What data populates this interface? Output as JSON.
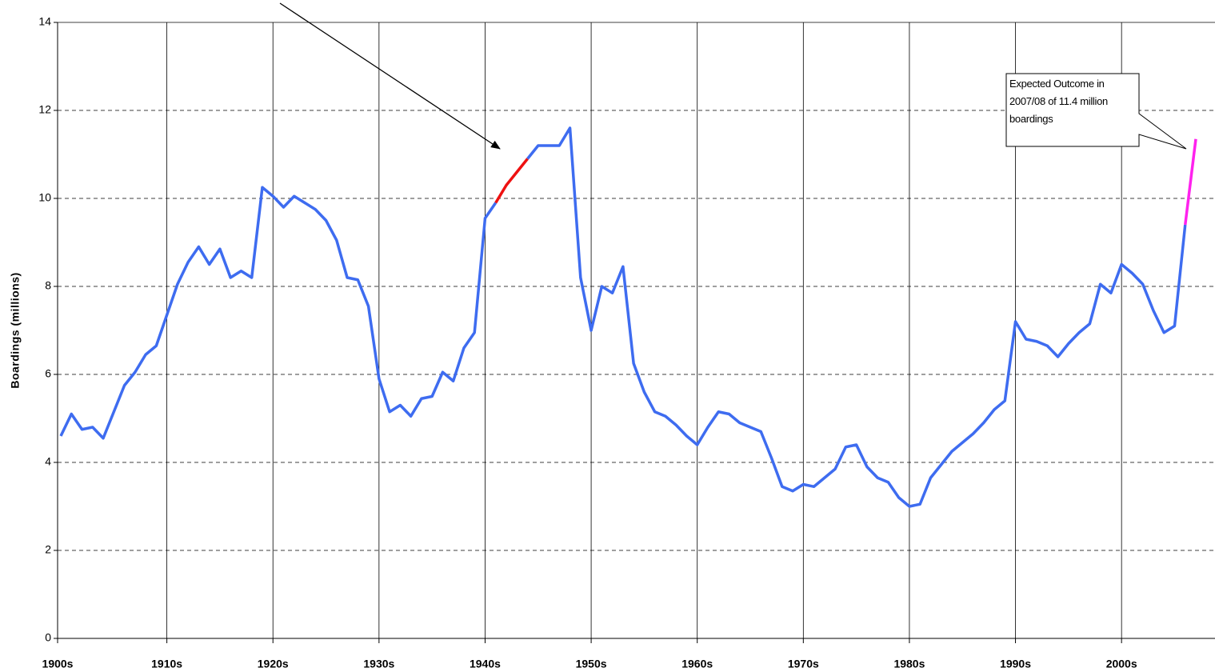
{
  "chart_data": {
    "type": "line",
    "y_label": "Boardings (millions)",
    "annotation": "Expected Outcome in 2007/08 of 11.4 million boardings",
    "categories": [
      "1900s",
      null,
      null,
      null,
      null,
      null,
      null,
      null,
      null,
      null,
      "1910s",
      null,
      null,
      null,
      null,
      null,
      null,
      null,
      null,
      null,
      "1920s",
      null,
      null,
      null,
      null,
      null,
      null,
      null,
      null,
      null,
      "1930s",
      null,
      null,
      null,
      null,
      null,
      null,
      null,
      null,
      null,
      "1940s",
      null,
      null,
      null,
      null,
      null,
      null,
      null,
      null,
      null,
      "1950s",
      null,
      null,
      null,
      null,
      null,
      null,
      null,
      null,
      null,
      "1960s",
      null,
      null,
      null,
      null,
      null,
      null,
      null,
      null,
      null,
      "1970s",
      null,
      null,
      null,
      null,
      null,
      null,
      null,
      null,
      null,
      "1980s",
      null,
      null,
      null,
      null,
      null,
      null,
      null,
      null,
      null,
      "1990s",
      null,
      null,
      null,
      null,
      null,
      null,
      null,
      null,
      null,
      "2000s",
      null,
      null,
      null,
      null,
      null,
      null,
      null
    ],
    "series": [
      {
        "color": "#3e6cf0",
        "values": [
          4.6,
          5.1,
          4.75,
          4.8,
          4.55,
          5.15,
          5.75,
          6.05,
          6.45,
          6.65,
          7.35,
          8.05,
          8.55,
          8.9,
          8.5,
          8.85,
          8.2,
          8.35,
          8.2,
          10.25,
          10.05,
          9.8,
          10.05,
          9.9,
          9.75,
          9.5,
          9.05,
          8.2,
          8.15,
          7.55,
          5.9,
          5.15,
          5.3,
          5.05,
          5.45,
          5.5,
          6.05,
          5.85,
          6.6,
          6.95,
          9.55,
          9.9,
          null,
          null,
          10.9,
          11.2,
          11.2,
          11.2,
          11.6,
          8.2,
          7.0,
          8.0,
          7.85,
          8.45,
          6.25,
          5.6,
          5.15,
          5.05,
          4.85,
          4.6,
          4.4,
          4.8,
          5.15,
          5.1,
          4.9,
          4.8,
          4.7,
          4.1,
          3.45,
          3.35,
          3.5,
          3.45,
          3.65,
          3.85,
          4.35,
          4.4,
          3.9,
          3.65,
          3.55,
          3.2,
          3.0,
          3.05,
          3.65,
          3.95,
          4.25,
          4.45,
          4.65,
          4.9,
          5.2,
          5.4,
          7.2,
          6.8,
          6.75,
          6.65,
          6.4,
          6.7,
          6.95,
          7.15,
          8.05,
          7.85,
          8.5,
          8.3,
          8.05,
          7.45,
          6.95,
          7.1,
          9.4,
          null
        ]
      },
      {
        "color": "#ee1111",
        "values": [
          null,
          null,
          null,
          null,
          null,
          null,
          null,
          null,
          null,
          null,
          null,
          null,
          null,
          null,
          null,
          null,
          null,
          null,
          null,
          null,
          null,
          null,
          null,
          null,
          null,
          null,
          null,
          null,
          null,
          null,
          null,
          null,
          null,
          null,
          null,
          null,
          null,
          null,
          null,
          null,
          null,
          9.9,
          10.3,
          10.6,
          10.9,
          null,
          null,
          null,
          null,
          null,
          null,
          null,
          null,
          null,
          null,
          null,
          null,
          null,
          null,
          null,
          null,
          null,
          null,
          null,
          null,
          null,
          null,
          null,
          null,
          null,
          null,
          null,
          null,
          null,
          null,
          null,
          null,
          null,
          null,
          null,
          null,
          null,
          null,
          null,
          null,
          null,
          null,
          null,
          null,
          null,
          null,
          null,
          null,
          null,
          null,
          null,
          null,
          null,
          null,
          null,
          null,
          null,
          null,
          null,
          null,
          null,
          null,
          null
        ]
      },
      {
        "color": "#ff22ee",
        "values": [
          null,
          null,
          null,
          null,
          null,
          null,
          null,
          null,
          null,
          null,
          null,
          null,
          null,
          null,
          null,
          null,
          null,
          null,
          null,
          null,
          null,
          null,
          null,
          null,
          null,
          null,
          null,
          null,
          null,
          null,
          null,
          null,
          null,
          null,
          null,
          null,
          null,
          null,
          null,
          null,
          null,
          null,
          null,
          null,
          null,
          null,
          null,
          null,
          null,
          null,
          null,
          null,
          null,
          null,
          null,
          null,
          null,
          null,
          null,
          null,
          null,
          null,
          null,
          null,
          null,
          null,
          null,
          null,
          null,
          null,
          null,
          null,
          null,
          null,
          null,
          null,
          null,
          null,
          null,
          null,
          null,
          null,
          null,
          null,
          null,
          null,
          null,
          null,
          null,
          null,
          null,
          null,
          null,
          null,
          null,
          null,
          null,
          null,
          null,
          null,
          null,
          null,
          null,
          null,
          null,
          null,
          9.4,
          11.35
        ]
      }
    ],
    "ylim": [
      0,
      14
    ],
    "yticks": [
      0,
      2,
      4,
      6,
      8,
      10,
      12,
      14
    ],
    "grid": true
  }
}
